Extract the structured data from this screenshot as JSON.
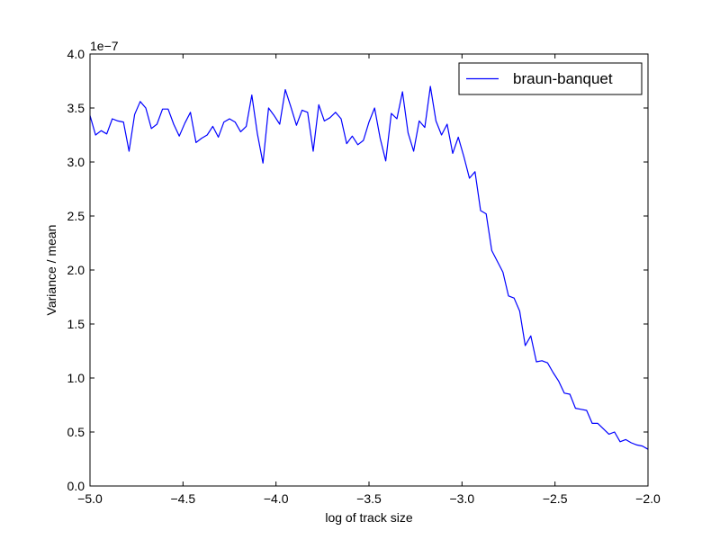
{
  "chart_data": {
    "type": "line",
    "title": "",
    "xlabel": "log of track size",
    "ylabel": "Variance / mean",
    "y_offset_label": "1e−7",
    "xlim": [
      -5.0,
      -2.0
    ],
    "ylim": [
      0.0,
      4.0
    ],
    "xticks": [
      -5.0,
      -4.5,
      -4.0,
      -3.5,
      -3.0,
      -2.5,
      -2.0
    ],
    "xtick_labels": [
      "−5.0",
      "−4.5",
      "−4.0",
      "−3.5",
      "−3.0",
      "−2.5",
      "−2.0"
    ],
    "yticks": [
      0.0,
      0.5,
      1.0,
      1.5,
      2.0,
      2.5,
      3.0,
      3.5,
      4.0
    ],
    "ytick_labels": [
      "0.0",
      "0.5",
      "1.0",
      "1.5",
      "2.0",
      "2.5",
      "3.0",
      "3.5",
      "4.0"
    ],
    "grid": false,
    "legend_position": "top-right",
    "color": "#0000ff",
    "series": [
      {
        "name": "braun-banquet",
        "color": "#0000ff",
        "x": [
          -5.0,
          -4.97,
          -4.94,
          -4.91,
          -4.88,
          -4.85,
          -4.82,
          -4.79,
          -4.76,
          -4.73,
          -4.7,
          -4.67,
          -4.64,
          -4.61,
          -4.58,
          -4.55,
          -4.52,
          -4.49,
          -4.46,
          -4.43,
          -4.4,
          -4.37,
          -4.34,
          -4.31,
          -4.28,
          -4.25,
          -4.22,
          -4.19,
          -4.16,
          -4.13,
          -4.1,
          -4.07,
          -4.04,
          -4.01,
          -3.98,
          -3.95,
          -3.92,
          -3.89,
          -3.86,
          -3.83,
          -3.8,
          -3.77,
          -3.74,
          -3.71,
          -3.68,
          -3.65,
          -3.62,
          -3.59,
          -3.56,
          -3.53,
          -3.5,
          -3.47,
          -3.44,
          -3.41,
          -3.38,
          -3.35,
          -3.32,
          -3.29,
          -3.26,
          -3.23,
          -3.2,
          -3.17,
          -3.14,
          -3.11,
          -3.08,
          -3.05,
          -3.02,
          -2.99,
          -2.96,
          -2.93,
          -2.9,
          -2.87,
          -2.84,
          -2.81,
          -2.78,
          -2.75,
          -2.72,
          -2.69,
          -2.66,
          -2.63,
          -2.6,
          -2.57,
          -2.54,
          -2.51,
          -2.48,
          -2.45,
          -2.42,
          -2.39,
          -2.36,
          -2.33,
          -2.3,
          -2.27,
          -2.24,
          -2.21,
          -2.18,
          -2.15,
          -2.12,
          -2.09,
          -2.06,
          -2.03,
          -2.0
        ],
        "y": [
          3.43,
          3.25,
          3.29,
          3.26,
          3.4,
          3.38,
          3.37,
          3.1,
          3.44,
          3.56,
          3.5,
          3.31,
          3.35,
          3.49,
          3.49,
          3.35,
          3.24,
          3.36,
          3.46,
          3.18,
          3.22,
          3.25,
          3.33,
          3.23,
          3.37,
          3.4,
          3.37,
          3.28,
          3.33,
          3.62,
          3.26,
          2.99,
          3.5,
          3.43,
          3.35,
          3.67,
          3.51,
          3.34,
          3.48,
          3.46,
          3.1,
          3.53,
          3.38,
          3.41,
          3.46,
          3.4,
          3.17,
          3.24,
          3.16,
          3.2,
          3.37,
          3.5,
          3.22,
          3.01,
          3.45,
          3.4,
          3.65,
          3.27,
          3.1,
          3.38,
          3.32,
          3.7,
          3.38,
          3.25,
          3.35,
          3.08,
          3.23,
          3.05,
          2.85,
          2.91,
          2.55,
          2.52,
          2.18,
          2.08,
          1.98,
          1.76,
          1.74,
          1.62,
          1.3,
          1.39,
          1.15,
          1.16,
          1.14,
          1.05,
          0.97,
          0.86,
          0.85,
          0.72,
          0.71,
          0.7,
          0.58,
          0.58,
          0.53,
          0.48,
          0.5,
          0.41,
          0.43,
          0.4,
          0.38,
          0.37,
          0.34
        ]
      }
    ]
  }
}
